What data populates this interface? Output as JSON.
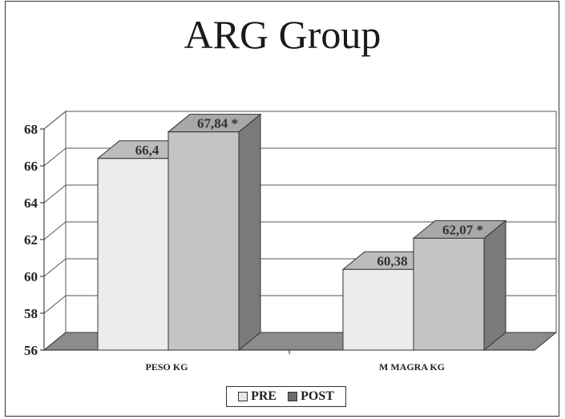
{
  "chart_data": {
    "type": "bar",
    "title": "ARG Group",
    "xlabel": "",
    "ylabel": "",
    "ylim": [
      56,
      68
    ],
    "yticks": [
      "56",
      "58",
      "60",
      "62",
      "64",
      "66",
      "68"
    ],
    "categories": [
      "PESO KG",
      "M MAGRA KG"
    ],
    "series": [
      {
        "name": "PRE",
        "values": [
          66.4,
          60.38
        ],
        "labels": [
          "66,4",
          "60,38"
        ]
      },
      {
        "name": "POST",
        "values": [
          67.84,
          62.07
        ],
        "labels": [
          "67,84 *",
          "62,07 *"
        ]
      }
    ],
    "grid": true,
    "style_3d": true,
    "legend_position": "bottom"
  },
  "colors": {
    "pre_front": "#ececec",
    "pre_side": "#8a8a8a",
    "pre_top": "#bcbcbc",
    "post_front": "#c4c4c4",
    "post_side": "#7a7a7a",
    "post_top": "#a8a8a8",
    "floor": "#8c8c8c",
    "grid": "#555555",
    "pre_swatch": "#e8e8e8",
    "post_swatch": "#6e6e6e"
  }
}
